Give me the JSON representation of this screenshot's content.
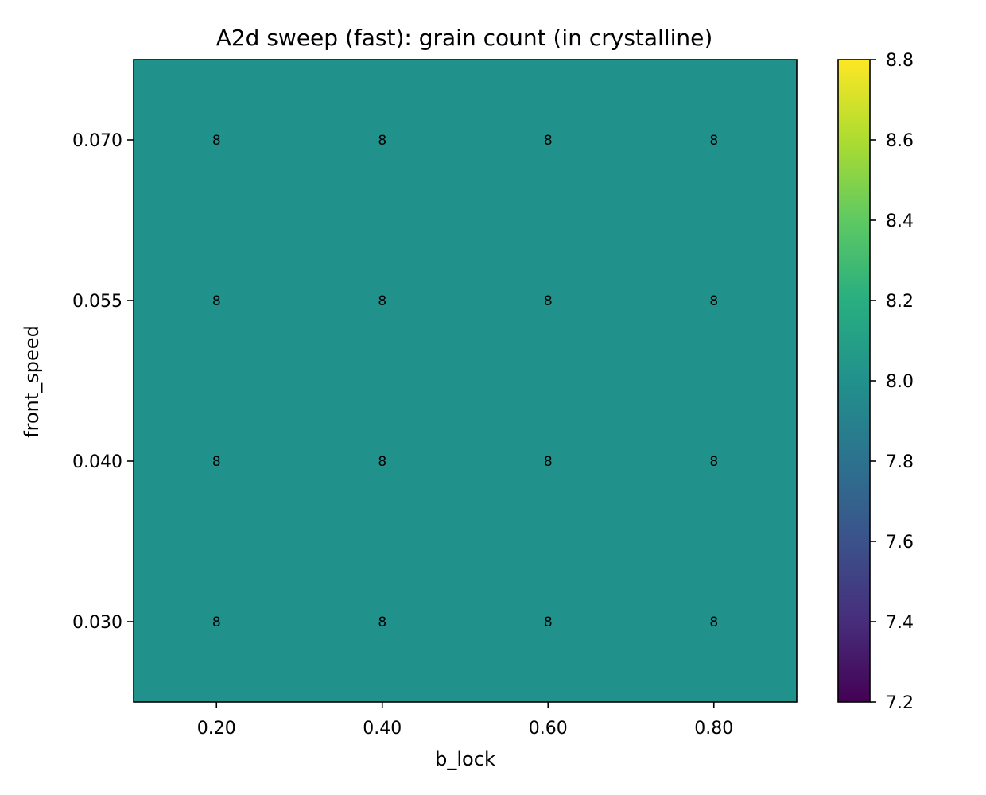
{
  "chart_data": {
    "type": "heatmap",
    "title": "A2d sweep (fast): grain count (in crystalline)",
    "xlabel": "b_lock",
    "ylabel": "front_speed",
    "x": [
      0.2,
      0.4,
      0.6,
      0.8
    ],
    "y": [
      0.03,
      0.04,
      0.055,
      0.07
    ],
    "x_tick_labels": [
      "0.20",
      "0.40",
      "0.60",
      "0.80"
    ],
    "y_tick_labels": [
      "0.030",
      "0.040",
      "0.055",
      "0.070"
    ],
    "values": [
      [
        8,
        8,
        8,
        8
      ],
      [
        8,
        8,
        8,
        8
      ],
      [
        8,
        8,
        8,
        8
      ],
      [
        8,
        8,
        8,
        8
      ]
    ],
    "cell_labels": [
      [
        "8",
        "8",
        "8",
        "8"
      ],
      [
        "8",
        "8",
        "8",
        "8"
      ],
      [
        "8",
        "8",
        "8",
        "8"
      ],
      [
        "8",
        "8",
        "8",
        "8"
      ]
    ],
    "colorbar": {
      "colormap": "viridis",
      "range": [
        7.2,
        8.8
      ],
      "ticks": [
        7.2,
        7.4,
        7.6,
        7.8,
        8.0,
        8.2,
        8.4,
        8.6,
        8.8
      ],
      "tick_labels": [
        "7.2",
        "7.4",
        "7.6",
        "7.8",
        "8.0",
        "8.2",
        "8.4",
        "8.6",
        "8.8"
      ]
    },
    "cell_color": "#21918c",
    "grid": false
  }
}
